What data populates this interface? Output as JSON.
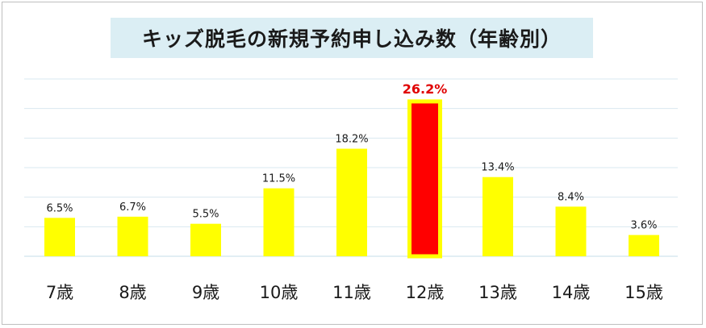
{
  "chart_data": {
    "type": "bar",
    "title": "キッズ脱毛の新規予約申し込み数（年齢別）",
    "categories": [
      "7歳",
      "8歳",
      "9歳",
      "10歳",
      "11歳",
      "12歳",
      "13歳",
      "14歳",
      "15歳"
    ],
    "values": [
      6.5,
      6.7,
      5.5,
      11.5,
      18.2,
      26.2,
      13.4,
      8.4,
      3.6
    ],
    "value_labels": [
      "6.5%",
      "6.7%",
      "5.5%",
      "11.5%",
      "18.2%",
      "26.2%",
      "13.4%",
      "8.4%",
      "3.6%"
    ],
    "highlight_index": 5,
    "ylim": [
      0,
      30
    ],
    "grid": true,
    "colors": {
      "bar": "#ffff00",
      "highlight_bar": "#ff0000",
      "highlight_border": "#ffff00",
      "highlight_label": "#e00000",
      "gridline": "#d9e8f0",
      "title_bg": "#dbeef4"
    }
  }
}
